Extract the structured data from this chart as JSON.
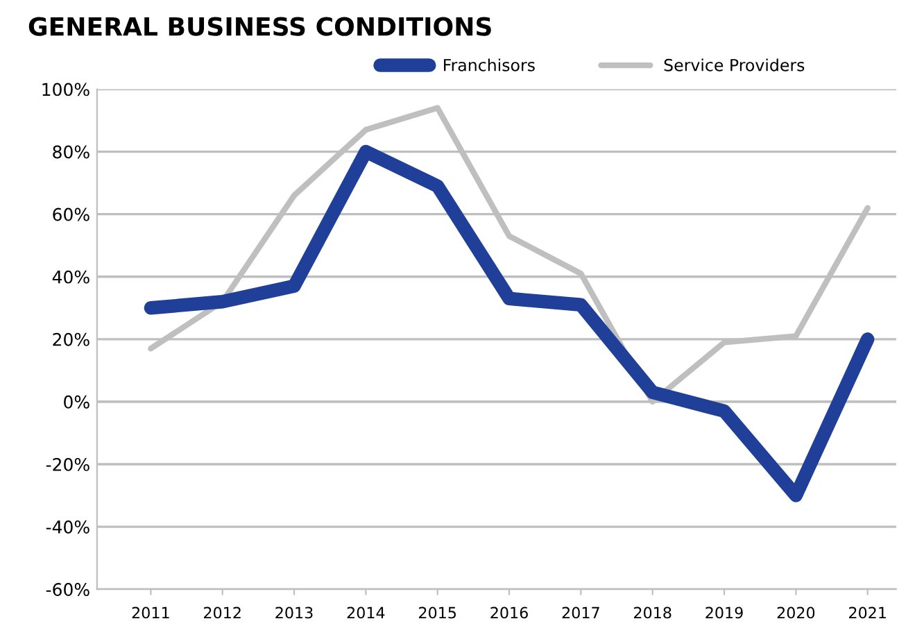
{
  "chart_data": {
    "type": "line",
    "title": "GENERAL BUSINESS CONDITIONS",
    "categories": [
      "2011",
      "2012",
      "2013",
      "2014",
      "2015",
      "2016",
      "2017",
      "2018",
      "2019",
      "2020",
      "2021"
    ],
    "series": [
      {
        "name": "Franchisors",
        "color": "#1f3f99",
        "values": [
          30,
          32,
          37,
          80,
          69,
          33,
          31,
          3,
          -3,
          -30,
          20
        ]
      },
      {
        "name": "Service Providers",
        "color": "#bfbfbf",
        "values": [
          17,
          32,
          66,
          87,
          94,
          53,
          41,
          0,
          19,
          21,
          62
        ]
      }
    ],
    "ylim": [
      -60,
      100
    ],
    "yticks": [
      {
        "value": -60,
        "label": "-60%"
      },
      {
        "value": -40,
        "label": "-40%"
      },
      {
        "value": -20,
        "label": "-20%"
      },
      {
        "value": 0,
        "label": "0%"
      },
      {
        "value": 20,
        "label": "20%"
      },
      {
        "value": 40,
        "label": "40%"
      },
      {
        "value": 60,
        "label": "60%"
      },
      {
        "value": 80,
        "label": "80%"
      },
      {
        "value": 100,
        "label": "100%"
      }
    ],
    "grid": "y",
    "legend": "top",
    "marker": "none",
    "line_style": "solid"
  }
}
